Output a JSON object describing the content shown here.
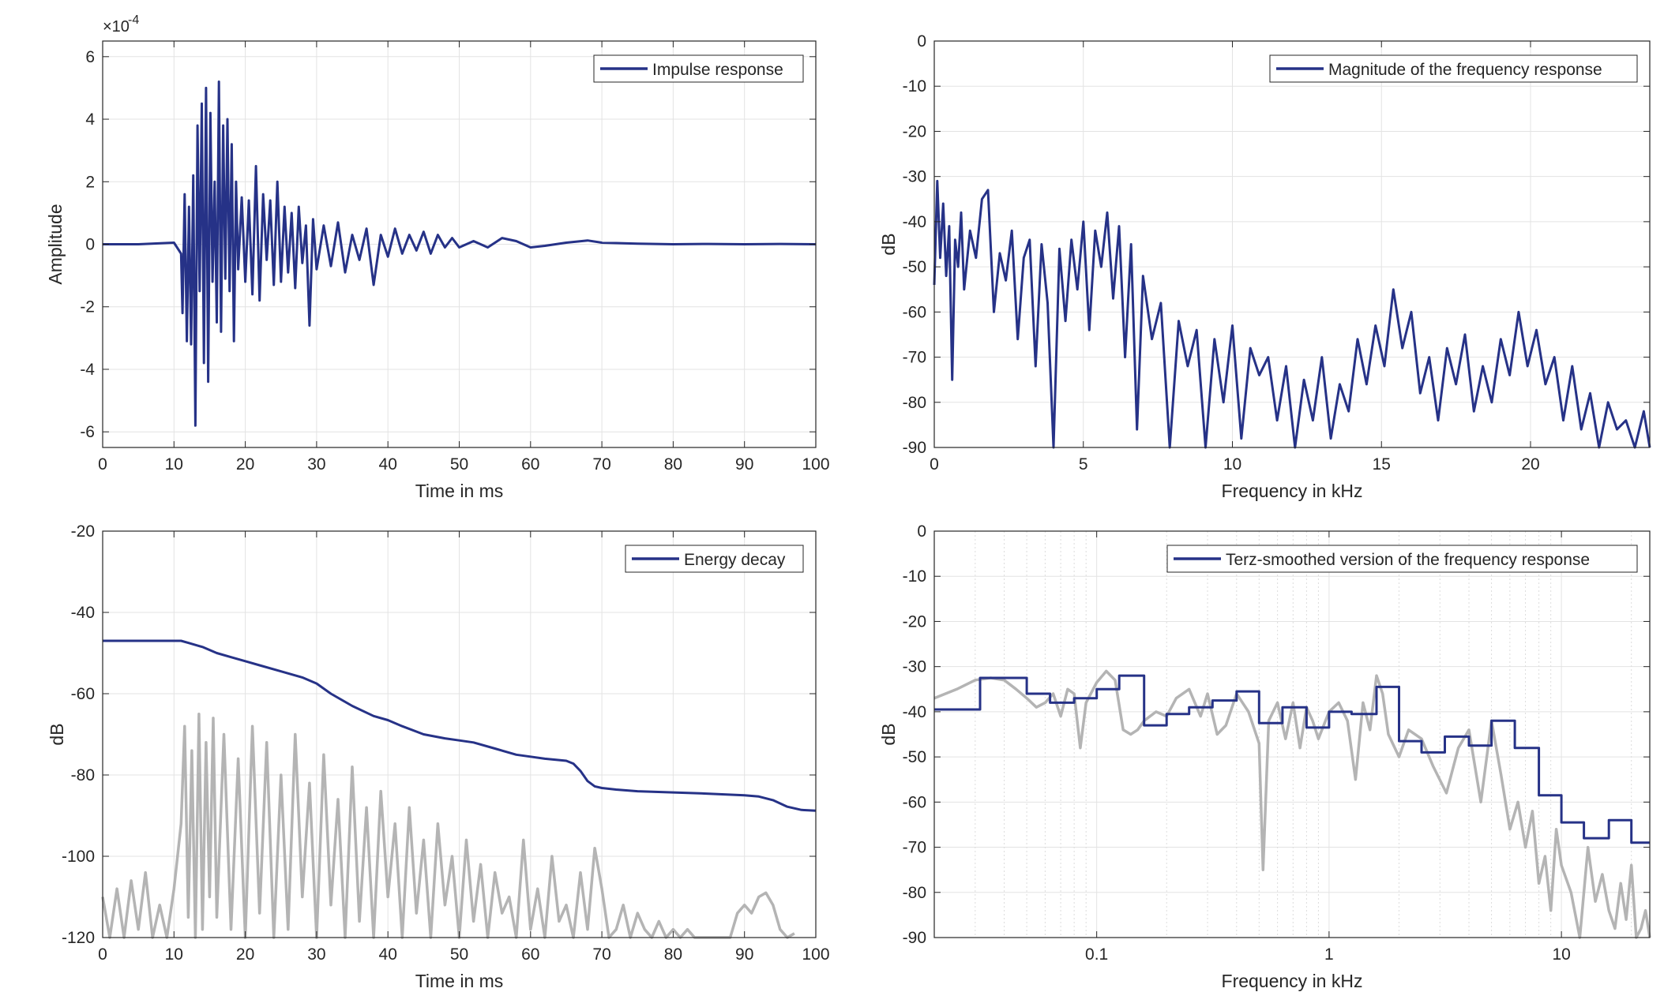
{
  "chart_data": [
    {
      "id": "impulse",
      "type": "line",
      "xlabel": "Time in ms",
      "ylabel": "Amplitude",
      "exponent_label": "×10",
      "exponent_sup": "-4",
      "xlim": [
        0,
        100
      ],
      "ylim": [
        -6.5,
        6.5
      ],
      "xticks": [
        0,
        10,
        20,
        30,
        40,
        50,
        60,
        70,
        80,
        90,
        100
      ],
      "yticks": [
        -6,
        -4,
        -2,
        0,
        2,
        4,
        6
      ],
      "grid": true,
      "legend": "top-right",
      "series": [
        {
          "name": "Impulse response",
          "color": "#263287",
          "x": [
            0,
            5,
            10,
            11,
            11.2,
            11.5,
            11.8,
            12.1,
            12.4,
            12.7,
            13.0,
            13.3,
            13.6,
            13.9,
            14.2,
            14.5,
            14.8,
            15.1,
            15.4,
            15.7,
            16.0,
            16.3,
            16.6,
            16.9,
            17.2,
            17.5,
            17.8,
            18.1,
            18.4,
            18.7,
            19.0,
            19.5,
            20.0,
            20.5,
            21.0,
            21.5,
            22.0,
            22.5,
            23.0,
            23.5,
            24.0,
            24.5,
            25.0,
            25.5,
            26.0,
            26.5,
            27.0,
            27.5,
            28.0,
            28.5,
            29.0,
            29.5,
            30.0,
            31,
            32,
            33,
            34,
            35,
            36,
            37,
            38,
            39,
            40,
            41,
            42,
            43,
            44,
            45,
            46,
            47,
            48,
            49,
            50,
            52,
            54,
            56,
            58,
            60,
            62,
            65,
            68,
            70,
            75,
            80,
            85,
            90,
            95,
            100
          ],
          "y": [
            0,
            0,
            0.05,
            -0.3,
            -2.2,
            1.6,
            -3.1,
            1.2,
            -3.2,
            2.2,
            -5.8,
            3.8,
            -1.5,
            4.5,
            -3.8,
            5.0,
            -4.4,
            4.2,
            -1.2,
            2.0,
            -2.5,
            5.2,
            -2.8,
            3.8,
            -1.1,
            4.0,
            -1.5,
            3.2,
            -3.1,
            2.0,
            -0.8,
            1.5,
            -1.2,
            1.4,
            -1.6,
            2.5,
            -1.8,
            1.6,
            -0.5,
            1.4,
            -1.3,
            2.0,
            -1.2,
            1.2,
            -0.9,
            1.0,
            -1.4,
            1.2,
            -0.6,
            0.6,
            -2.6,
            0.8,
            -0.8,
            0.6,
            -0.7,
            0.7,
            -0.9,
            0.3,
            -0.5,
            0.5,
            -1.3,
            0.3,
            -0.4,
            0.5,
            -0.3,
            0.3,
            -0.2,
            0.4,
            -0.3,
            0.3,
            -0.1,
            0.2,
            -0.1,
            0.1,
            -0.1,
            0.2,
            0.1,
            -0.1,
            -0.05,
            0.05,
            0.12,
            0.05,
            0.02,
            0.0,
            0.01,
            0.0,
            0.01,
            0.0
          ]
        }
      ]
    },
    {
      "id": "magnitude",
      "type": "line",
      "xlabel": "Frequency in kHz",
      "ylabel": "dB",
      "xlim": [
        0,
        24
      ],
      "ylim": [
        -90,
        0
      ],
      "xticks": [
        0,
        5,
        10,
        15,
        20
      ],
      "yticks": [
        0,
        -10,
        -20,
        -30,
        -40,
        -50,
        -60,
        -70,
        -80,
        -90
      ],
      "grid": true,
      "legend": "top-right",
      "series": [
        {
          "name": "Magnitude of the frequency response",
          "color": "#263287",
          "x": [
            0,
            0.1,
            0.2,
            0.3,
            0.4,
            0.5,
            0.6,
            0.7,
            0.8,
            0.9,
            1.0,
            1.2,
            1.4,
            1.6,
            1.8,
            2.0,
            2.2,
            2.4,
            2.6,
            2.8,
            3.0,
            3.2,
            3.4,
            3.6,
            3.8,
            4.0,
            4.2,
            4.4,
            4.6,
            4.8,
            5.0,
            5.2,
            5.4,
            5.6,
            5.8,
            6.0,
            6.2,
            6.4,
            6.6,
            6.8,
            7.0,
            7.3,
            7.6,
            7.9,
            8.2,
            8.5,
            8.8,
            9.1,
            9.4,
            9.7,
            10.0,
            10.3,
            10.6,
            10.9,
            11.2,
            11.5,
            11.8,
            12.1,
            12.4,
            12.7,
            13.0,
            13.3,
            13.6,
            13.9,
            14.2,
            14.5,
            14.8,
            15.1,
            15.4,
            15.7,
            16.0,
            16.3,
            16.6,
            16.9,
            17.2,
            17.5,
            17.8,
            18.1,
            18.4,
            18.7,
            19.0,
            19.3,
            19.6,
            19.9,
            20.2,
            20.5,
            20.8,
            21.1,
            21.4,
            21.7,
            22.0,
            22.3,
            22.6,
            22.9,
            23.2,
            23.5,
            23.8,
            24.0
          ],
          "y": [
            -54,
            -31,
            -48,
            -36,
            -52,
            -41,
            -75,
            -44,
            -50,
            -38,
            -55,
            -42,
            -48,
            -35,
            -33,
            -60,
            -47,
            -53,
            -42,
            -66,
            -48,
            -44,
            -72,
            -45,
            -58,
            -90,
            -46,
            -62,
            -44,
            -55,
            -40,
            -64,
            -42,
            -50,
            -38,
            -57,
            -41,
            -70,
            -45,
            -86,
            -52,
            -66,
            -58,
            -90,
            -62,
            -72,
            -64,
            -90,
            -66,
            -80,
            -63,
            -88,
            -68,
            -74,
            -70,
            -84,
            -72,
            -90,
            -75,
            -84,
            -70,
            -88,
            -76,
            -82,
            -66,
            -76,
            -63,
            -72,
            -55,
            -68,
            -60,
            -78,
            -70,
            -84,
            -68,
            -76,
            -65,
            -82,
            -72,
            -80,
            -66,
            -74,
            -60,
            -72,
            -64,
            -76,
            -70,
            -84,
            -72,
            -86,
            -78,
            -90,
            -80,
            -86,
            -84,
            -90,
            -82,
            -90
          ]
        }
      ]
    },
    {
      "id": "energy-decay",
      "type": "line",
      "xlabel": "Time in ms",
      "ylabel": "dB",
      "xlim": [
        0,
        100
      ],
      "ylim": [
        -120,
        -20
      ],
      "xticks": [
        0,
        10,
        20,
        30,
        40,
        50,
        60,
        70,
        80,
        90,
        100
      ],
      "yticks": [
        -20,
        -40,
        -60,
        -80,
        -100,
        -120
      ],
      "grid": true,
      "legend": "top-right",
      "series": [
        {
          "name": "Energy decay",
          "color": "#263287",
          "x": [
            0,
            5,
            10,
            11,
            12,
            14,
            16,
            18,
            20,
            22,
            25,
            28,
            30,
            32,
            35,
            38,
            40,
            42,
            45,
            48,
            50,
            52,
            55,
            58,
            60,
            62,
            65,
            66,
            67,
            68,
            69,
            70,
            72,
            75,
            80,
            85,
            90,
            92,
            94,
            96,
            98,
            100
          ],
          "y": [
            -47,
            -47,
            -47,
            -47,
            -47.5,
            -48.5,
            -50,
            -51,
            -52,
            -53,
            -54.5,
            -56,
            -57.5,
            -60,
            -63,
            -65.5,
            -66.5,
            -68,
            -70,
            -71,
            -71.5,
            -72,
            -73.5,
            -75,
            -75.5,
            -76,
            -76.5,
            -77.2,
            -79,
            -81.5,
            -82.8,
            -83.2,
            -83.6,
            -84,
            -84.3,
            -84.6,
            -85,
            -85.3,
            -86.2,
            -87.8,
            -88.6,
            -88.8
          ]
        },
        {
          "name": "",
          "color": "#b4b4b4",
          "x": [
            0,
            1,
            2,
            3,
            4,
            5,
            6,
            7,
            8,
            9,
            10,
            11,
            11.5,
            12,
            12.5,
            13,
            13.5,
            14,
            14.5,
            15,
            15.5,
            16,
            17,
            18,
            19,
            20,
            21,
            22,
            23,
            24,
            25,
            26,
            27,
            28,
            29,
            30,
            31,
            32,
            33,
            34,
            35,
            36,
            37,
            38,
            39,
            40,
            41,
            42,
            43,
            44,
            45,
            46,
            47,
            48,
            49,
            50,
            51,
            52,
            53,
            54,
            55,
            56,
            57,
            58,
            59,
            60,
            61,
            62,
            63,
            64,
            65,
            66,
            67,
            68,
            69,
            70,
            71,
            72,
            73,
            74,
            75,
            76,
            77,
            78,
            79,
            80,
            81,
            82,
            83,
            88,
            89,
            90,
            91,
            92,
            93,
            94,
            95,
            96,
            97
          ],
          "y": [
            -110,
            -120,
            -108,
            -120,
            -106,
            -118,
            -104,
            -120,
            -112,
            -120,
            -108,
            -92,
            -68,
            -115,
            -74,
            -120,
            -65,
            -118,
            -72,
            -110,
            -66,
            -115,
            -70,
            -118,
            -76,
            -120,
            -68,
            -114,
            -72,
            -120,
            -80,
            -118,
            -70,
            -110,
            -82,
            -120,
            -75,
            -112,
            -86,
            -120,
            -78,
            -116,
            -88,
            -120,
            -84,
            -110,
            -92,
            -120,
            -88,
            -114,
            -96,
            -120,
            -92,
            -112,
            -100,
            -120,
            -96,
            -116,
            -102,
            -120,
            -104,
            -114,
            -110,
            -120,
            -96,
            -118,
            -108,
            -120,
            -100,
            -116,
            -112,
            -120,
            -104,
            -118,
            -98,
            -108,
            -120,
            -118,
            -112,
            -120,
            -114,
            -118,
            -120,
            -116,
            -120,
            -118,
            -120,
            -118,
            -120,
            -120,
            -114,
            -112,
            -114,
            -110,
            -109,
            -112,
            -118,
            -120,
            -119
          ]
        }
      ]
    },
    {
      "id": "terz",
      "type": "line",
      "xlabel": "Frequency in kHz",
      "ylabel": "dB",
      "xscale": "log",
      "xlim": [
        0.02,
        24
      ],
      "ylim": [
        -90,
        0
      ],
      "xticks": [
        0.1,
        1,
        10
      ],
      "xtick_labels": [
        "0.1",
        "1",
        "10"
      ],
      "yticks": [
        0,
        -10,
        -20,
        -30,
        -40,
        -50,
        -60,
        -70,
        -80,
        -90
      ],
      "grid": true,
      "legend": "top-right",
      "series": [
        {
          "name": "Terz-smoothed version of the frequency response",
          "color": "#263287",
          "step": true,
          "x": [
            0.02,
            0.025,
            0.0315,
            0.04,
            0.05,
            0.063,
            0.08,
            0.1,
            0.125,
            0.16,
            0.2,
            0.25,
            0.315,
            0.4,
            0.5,
            0.63,
            0.8,
            1.0,
            1.25,
            1.6,
            2.0,
            2.5,
            3.15,
            4.0,
            5.0,
            6.3,
            8.0,
            10.0,
            12.5,
            16.0,
            20.0,
            24.0
          ],
          "y": [
            -39.5,
            -39.5,
            -32.5,
            -32.5,
            -36,
            -38,
            -37,
            -35,
            -32,
            -43,
            -40.5,
            -39,
            -37.5,
            -35.5,
            -42.5,
            -39,
            -43.5,
            -40,
            -40.5,
            -34.5,
            -46.5,
            -49,
            -45.5,
            -47.5,
            -42,
            -48,
            -58.5,
            -64.5,
            -68,
            -64,
            -69,
            -69
          ]
        },
        {
          "name": "",
          "color": "#b4b4b4",
          "x": [
            0.02,
            0.025,
            0.03,
            0.035,
            0.04,
            0.045,
            0.05,
            0.055,
            0.06,
            0.065,
            0.07,
            0.075,
            0.08,
            0.085,
            0.09,
            0.1,
            0.11,
            0.12,
            0.13,
            0.14,
            0.15,
            0.16,
            0.18,
            0.2,
            0.22,
            0.25,
            0.28,
            0.3,
            0.33,
            0.36,
            0.4,
            0.45,
            0.5,
            0.52,
            0.55,
            0.6,
            0.65,
            0.7,
            0.75,
            0.8,
            0.85,
            0.9,
            1.0,
            1.1,
            1.2,
            1.3,
            1.4,
            1.5,
            1.6,
            1.7,
            1.8,
            2.0,
            2.2,
            2.5,
            2.8,
            3.2,
            3.6,
            4.0,
            4.5,
            5.0,
            5.5,
            6.0,
            6.5,
            7.0,
            7.5,
            8.0,
            8.5,
            9.0,
            9.5,
            10,
            11,
            12,
            13,
            14,
            15,
            16,
            17,
            18,
            19,
            20,
            21,
            22,
            23,
            24
          ],
          "y": [
            -37,
            -35,
            -33,
            -32.5,
            -33,
            -35,
            -37,
            -39,
            -38,
            -36,
            -41,
            -35,
            -36,
            -48,
            -38,
            -33.5,
            -31,
            -33,
            -44,
            -45,
            -44,
            -42,
            -40,
            -41,
            -37,
            -35,
            -41,
            -36,
            -45,
            -43,
            -36,
            -40,
            -47,
            -75,
            -42,
            -38,
            -46,
            -38,
            -48,
            -39,
            -42,
            -46,
            -40,
            -38,
            -42,
            -55,
            -38,
            -44,
            -32,
            -36,
            -45,
            -50,
            -44,
            -46,
            -52,
            -58,
            -48,
            -44,
            -60,
            -42,
            -54,
            -66,
            -60,
            -70,
            -62,
            -78,
            -72,
            -84,
            -66,
            -74,
            -80,
            -90,
            -70,
            -82,
            -76,
            -84,
            -88,
            -78,
            -86,
            -74,
            -90,
            -88,
            -84,
            -90
          ]
        }
      ]
    }
  ]
}
